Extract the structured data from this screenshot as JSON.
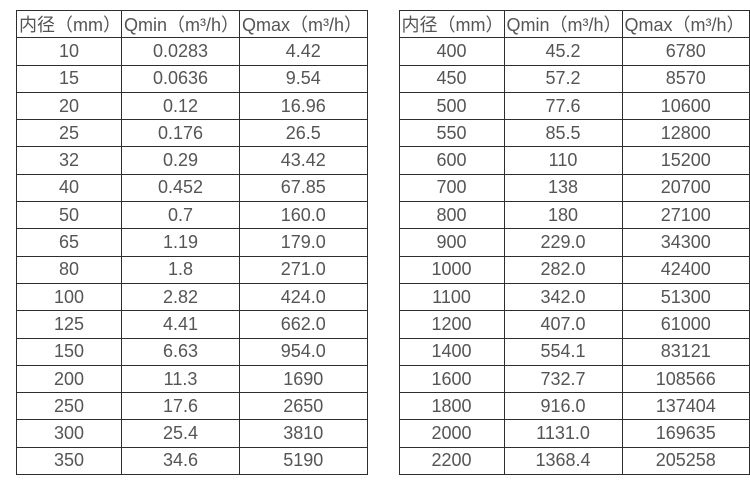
{
  "page": {
    "background_color": "#ffffff",
    "border_color": "#2e2e2e",
    "text_color": "#555555"
  },
  "tables": [
    {
      "name": "small-diameter-flow-range-table",
      "headers": [
        "内径（mm）",
        "Qmin（m³/h）",
        "Qmax（m³/h）"
      ],
      "rows": [
        [
          "10",
          "0.0283",
          "4.42"
        ],
        [
          "15",
          "0.0636",
          "9.54"
        ],
        [
          "20",
          "0.12",
          "16.96"
        ],
        [
          "25",
          "0.176",
          "26.5"
        ],
        [
          "32",
          "0.29",
          "43.42"
        ],
        [
          "40",
          "0.452",
          "67.85"
        ],
        [
          "50",
          "0.7",
          "160.0"
        ],
        [
          "65",
          "1.19",
          "179.0"
        ],
        [
          "80",
          "1.8",
          "271.0"
        ],
        [
          "100",
          "2.82",
          "424.0"
        ],
        [
          "125",
          "4.41",
          "662.0"
        ],
        [
          "150",
          "6.63",
          "954.0"
        ],
        [
          "200",
          "11.3",
          "1690"
        ],
        [
          "250",
          "17.6",
          "2650"
        ],
        [
          "300",
          "25.4",
          "3810"
        ],
        [
          "350",
          "34.6",
          "5190"
        ]
      ]
    },
    {
      "name": "large-diameter-flow-range-table",
      "headers": [
        "内径（mm）",
        "Qmin（m³/h）",
        "Qmax（m³/h）"
      ],
      "rows": [
        [
          "400",
          "45.2",
          "6780"
        ],
        [
          "450",
          "57.2",
          "8570"
        ],
        [
          "500",
          "77.6",
          "10600"
        ],
        [
          "550",
          "85.5",
          "12800"
        ],
        [
          "600",
          "110",
          "15200"
        ],
        [
          "700",
          "138",
          "20700"
        ],
        [
          "800",
          "180",
          "27100"
        ],
        [
          "900",
          "229.0",
          "34300"
        ],
        [
          "1000",
          "282.0",
          "42400"
        ],
        [
          "1100",
          "342.0",
          "51300"
        ],
        [
          "1200",
          "407.0",
          "61000"
        ],
        [
          "1400",
          "554.1",
          "83121"
        ],
        [
          "1600",
          "732.7",
          "108566"
        ],
        [
          "1800",
          "916.0",
          "137404"
        ],
        [
          "2000",
          "1131.0",
          "169635"
        ],
        [
          "2200",
          "1368.4",
          "205258"
        ]
      ]
    }
  ]
}
